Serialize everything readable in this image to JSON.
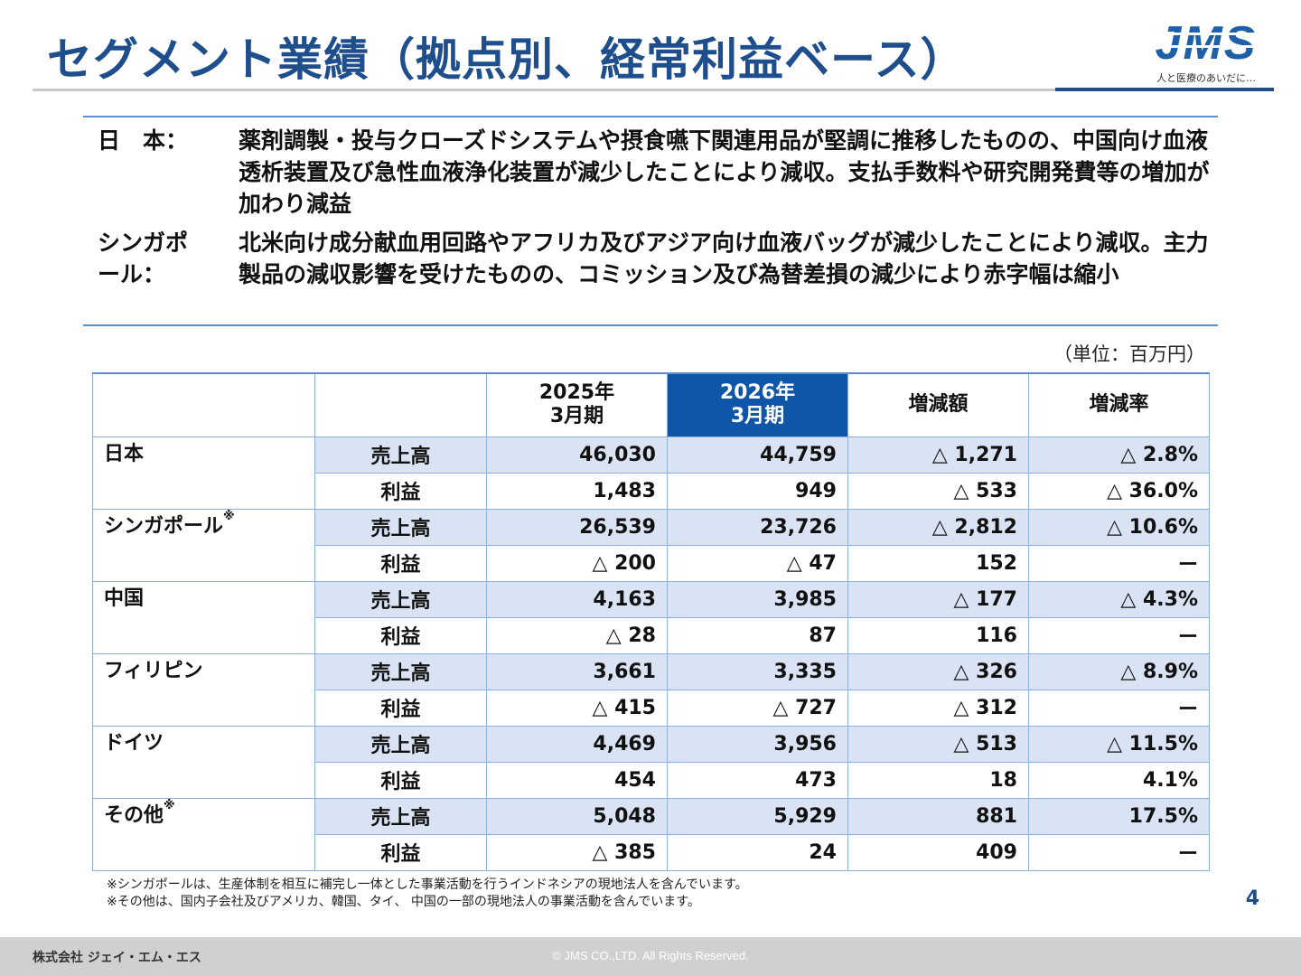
{
  "title": "セグメント業績（拠点別、経常利益ベース）",
  "logo": {
    "mark": "JMS",
    "tagline": "人と医療のあいだに…"
  },
  "summary": [
    {
      "label": "日　本：",
      "text": "薬剤調製・投与クローズドシステムや摂食嚥下関連用品が堅調に推移したものの、中国向け血液透析装置及び急性血液浄化装置が減少したことにより減収。支払手数料や研究開発費等の増加が加わり減益"
    },
    {
      "label": "シンガポール：",
      "text": "北米向け成分献血用回路やアフリカ及びアジア向け血液バッグが減少したことにより減収。主力製品の減収影響を受けたものの、コミッション及び為替差損の減少により赤字幅は縮小"
    }
  ],
  "unit": "（単位：百万円）",
  "table": {
    "headers": [
      "",
      "",
      "2025年\n3月期",
      "2026年\n3月期",
      "増減額",
      "増減率"
    ],
    "regions": [
      {
        "name": "日本",
        "note": "",
        "rows": [
          {
            "metric": "売上高",
            "fy2025": "46,030",
            "fy2026": "44,759",
            "change": "△ 1,271",
            "rate": "△ 2.8%"
          },
          {
            "metric": "利益",
            "fy2025": "1,483",
            "fy2026": "949",
            "change": "△ 533",
            "rate": "△ 36.0%"
          }
        ]
      },
      {
        "name": "シンガポール",
        "note": "※",
        "rows": [
          {
            "metric": "売上高",
            "fy2025": "26,539",
            "fy2026": "23,726",
            "change": "△ 2,812",
            "rate": "△ 10.6%"
          },
          {
            "metric": "利益",
            "fy2025": "△ 200",
            "fy2026": "△ 47",
            "change": "152",
            "rate": "ー"
          }
        ]
      },
      {
        "name": "中国",
        "note": "",
        "rows": [
          {
            "metric": "売上高",
            "fy2025": "4,163",
            "fy2026": "3,985",
            "change": "△ 177",
            "rate": "△ 4.3%"
          },
          {
            "metric": "利益",
            "fy2025": "△ 28",
            "fy2026": "87",
            "change": "116",
            "rate": "ー"
          }
        ]
      },
      {
        "name": "フィリピン",
        "note": "",
        "rows": [
          {
            "metric": "売上高",
            "fy2025": "3,661",
            "fy2026": "3,335",
            "change": "△ 326",
            "rate": "△ 8.9%"
          },
          {
            "metric": "利益",
            "fy2025": "△ 415",
            "fy2026": "△ 727",
            "change": "△ 312",
            "rate": "ー"
          }
        ]
      },
      {
        "name": "ドイツ",
        "note": "",
        "rows": [
          {
            "metric": "売上高",
            "fy2025": "4,469",
            "fy2026": "3,956",
            "change": "△ 513",
            "rate": "△ 11.5%"
          },
          {
            "metric": "利益",
            "fy2025": "454",
            "fy2026": "473",
            "change": "18",
            "rate": "4.1%"
          }
        ]
      },
      {
        "name": "その他",
        "note": "※",
        "rows": [
          {
            "metric": "売上高",
            "fy2025": "5,048",
            "fy2026": "5,929",
            "change": "881",
            "rate": "17.5%"
          },
          {
            "metric": "利益",
            "fy2025": "△ 385",
            "fy2026": "24",
            "change": "409",
            "rate": "ー"
          }
        ]
      }
    ]
  },
  "notes": [
    "※シンガポールは、生産体制を相互に補完し一体とした事業活動を行うインドネシアの現地法人を含んでいます。",
    "※その他は、国内子会社及びアメリカ、韓国、タイ、 中国の一部の現地法人の事業活動を含んでいます。"
  ],
  "page_number": "4",
  "footer": {
    "company": "株式会社 ジェイ・エム・エス",
    "copyright": "© JMS CO.,LTD.  All Rights Reserved."
  },
  "colors": {
    "title": "#1f4e8c",
    "accent": "#0f55a8",
    "row_shade": "#d9e3f3",
    "rule": "#5b8fd1"
  }
}
